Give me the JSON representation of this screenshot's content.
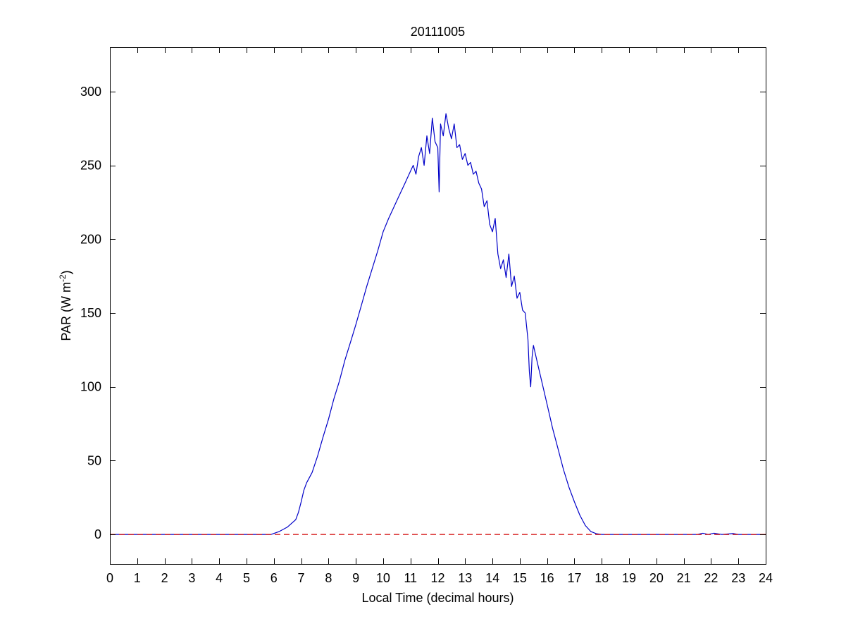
{
  "chart_data": {
    "type": "line",
    "title": "20111005",
    "xlabel": "Local Time (decimal hours)",
    "ylabel": {
      "text": "PAR (W m",
      "superscript": "-2",
      "suffix": ")"
    },
    "xlim": [
      0,
      24
    ],
    "ylim": [
      -20,
      330
    ],
    "xticks": [
      0,
      1,
      2,
      3,
      4,
      5,
      6,
      7,
      8,
      9,
      10,
      11,
      12,
      13,
      14,
      15,
      16,
      17,
      18,
      19,
      20,
      21,
      22,
      23,
      24
    ],
    "yticks": [
      0,
      50,
      100,
      150,
      200,
      250,
      300
    ],
    "grid": false,
    "series": [
      {
        "color": "#0000c8",
        "style": "solid",
        "x": [
          0,
          5.9,
          6.2,
          6.5,
          6.8,
          6.9,
          7.0,
          7.1,
          7.2,
          7.4,
          7.6,
          7.8,
          8.0,
          8.2,
          8.4,
          8.6,
          8.8,
          9.0,
          9.2,
          9.4,
          9.6,
          9.8,
          10.0,
          10.2,
          10.4,
          10.6,
          10.8,
          11.0,
          11.1,
          11.2,
          11.3,
          11.4,
          11.5,
          11.6,
          11.7,
          11.8,
          11.9,
          12.0,
          12.05,
          12.1,
          12.2,
          12.3,
          12.4,
          12.5,
          12.6,
          12.7,
          12.8,
          12.9,
          13.0,
          13.1,
          13.2,
          13.3,
          13.4,
          13.5,
          13.6,
          13.7,
          13.8,
          13.9,
          14.0,
          14.1,
          14.2,
          14.3,
          14.4,
          14.5,
          14.6,
          14.7,
          14.8,
          14.9,
          15.0,
          15.1,
          15.2,
          15.3,
          15.35,
          15.4,
          15.45,
          15.5,
          15.6,
          15.7,
          15.8,
          16.0,
          16.2,
          16.4,
          16.6,
          16.8,
          17.0,
          17.2,
          17.4,
          17.6,
          17.8,
          18.0,
          18.2,
          19.0,
          21.5,
          21.7,
          21.9,
          22.1,
          22.4,
          22.8,
          23.0,
          24
        ],
        "y": [
          0,
          0,
          2,
          5,
          10,
          15,
          22,
          30,
          35,
          42,
          53,
          66,
          78,
          92,
          104,
          118,
          130,
          142,
          155,
          168,
          180,
          192,
          205,
          214,
          222,
          230,
          238,
          246,
          250,
          244,
          256,
          262,
          250,
          270,
          258,
          282,
          266,
          262,
          232,
          278,
          270,
          285,
          275,
          268,
          278,
          262,
          264,
          254,
          258,
          250,
          252,
          244,
          246,
          238,
          234,
          222,
          226,
          210,
          205,
          214,
          190,
          180,
          186,
          174,
          190,
          168,
          175,
          160,
          164,
          152,
          150,
          132,
          110,
          100,
          120,
          128,
          120,
          112,
          104,
          88,
          72,
          58,
          44,
          32,
          22,
          13,
          6,
          2,
          0.5,
          0,
          0,
          0,
          0,
          0.8,
          0,
          0.8,
          0,
          0.6,
          0,
          0
        ]
      },
      {
        "color": "#d00000",
        "style": "dashed",
        "x": [
          0,
          24
        ],
        "y": [
          0,
          0
        ]
      }
    ]
  }
}
